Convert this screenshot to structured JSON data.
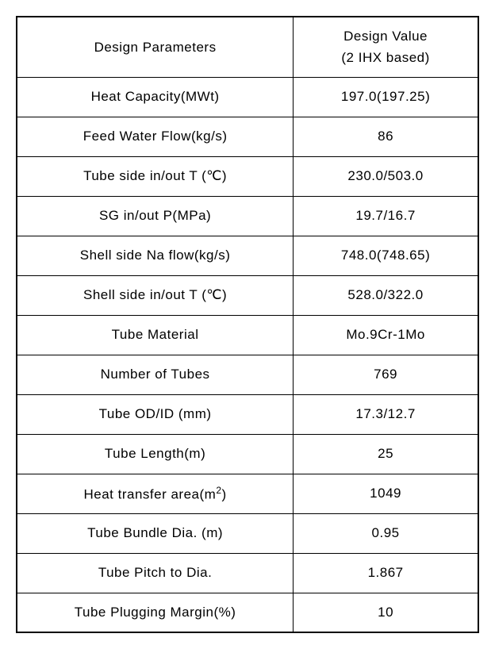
{
  "table": {
    "header": {
      "param": "Design Parameters",
      "value_line1": "Design Value",
      "value_line2": "(2 IHX based)"
    },
    "rows": [
      {
        "param": "Heat Capacity(MWt)",
        "value": "197.0(197.25)"
      },
      {
        "param": "Feed Water Flow(kg/s)",
        "value": "86"
      },
      {
        "param": "Tube side in/out T (℃)",
        "value": "230.0/503.0"
      },
      {
        "param": "SG in/out P(MPa)",
        "value": "19.7/16.7"
      },
      {
        "param": "Shell side Na flow(kg/s)",
        "value": "748.0(748.65)"
      },
      {
        "param": "Shell side in/out T (℃)",
        "value": "528.0/322.0"
      },
      {
        "param": "Tube Material",
        "value": "Mo.9Cr-1Mo"
      },
      {
        "param": "Number of Tubes",
        "value": "769"
      },
      {
        "param": "Tube OD/ID (mm)",
        "value": "17.3/12.7"
      },
      {
        "param": "Tube Length(m)",
        "value": "25"
      },
      {
        "param_html": "Heat transfer area(m<span class=\"sup\">2</span>)",
        "value": "1049"
      },
      {
        "param": "Tube Bundle Dia. (m)",
        "value": "0.95"
      },
      {
        "param": "Tube Pitch to Dia.",
        "value": "1.867"
      },
      {
        "param": "Tube Plugging Margin(%)",
        "value": "10"
      }
    ]
  }
}
